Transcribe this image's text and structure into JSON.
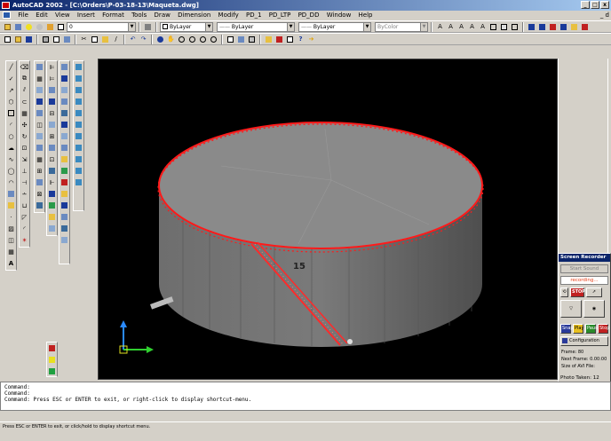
{
  "window": {
    "title": "AutoCAD 2002 - [C:\\Orders\\P-03-18-13\\Maqueta.dwg]",
    "controls": [
      "_",
      "□",
      "x"
    ],
    "doc_controls": "_ d"
  },
  "menu": {
    "items": [
      "File",
      "Edit",
      "View",
      "Insert",
      "Format",
      "Tools",
      "Draw",
      "Dimension",
      "Modify",
      "PD_1",
      "PD_LTP",
      "PD_DD",
      "Window",
      "Help"
    ]
  },
  "toolbar": {
    "layer_value": "0",
    "color_value": "ByLayer",
    "linetype_value": "ByLayer",
    "lineweight_value": "ByLayer",
    "plotstyle_value": "ByColor"
  },
  "drawing": {
    "label": "15",
    "colors": {
      "background": "#000000",
      "tank_top": "#7a7a7a",
      "tank_side": "#5a5a5a",
      "railing": "#ff1a1a"
    }
  },
  "command_line": {
    "lines": [
      "Command:",
      "Command:",
      "Command: Press ESC or ENTER to exit, or right-click to display shortcut-menu."
    ]
  },
  "status_bar": {
    "text": "Press ESC or ENTER to exit, or click/hold to display shortcut menu."
  },
  "recorder": {
    "title": "Screen Recorder",
    "start_label": "Start Sound",
    "status_text": "recording...",
    "stop_label": "STOP",
    "configuration_label": "Configuration",
    "frame_label": "Frame: 80",
    "next_frame_label": "Next Frame: 0.00:00",
    "avi_size_label": "Size of AVI File:",
    "photo_taken_label": "Photo Taken: 12",
    "buttons": [
      "Snap",
      "Play",
      "Pause",
      "Stop"
    ]
  },
  "icons": [
    "new-icon",
    "open-icon",
    "save-icon",
    "print-icon",
    "cut-icon",
    "copy-icon",
    "paste-icon",
    "undo-icon",
    "redo-icon",
    "zoom-icon",
    "pan-icon",
    "line-icon",
    "circle-icon",
    "arc-icon",
    "rectangle-icon",
    "erase-icon",
    "move-icon",
    "rotate-icon",
    "ucs-icon"
  ]
}
